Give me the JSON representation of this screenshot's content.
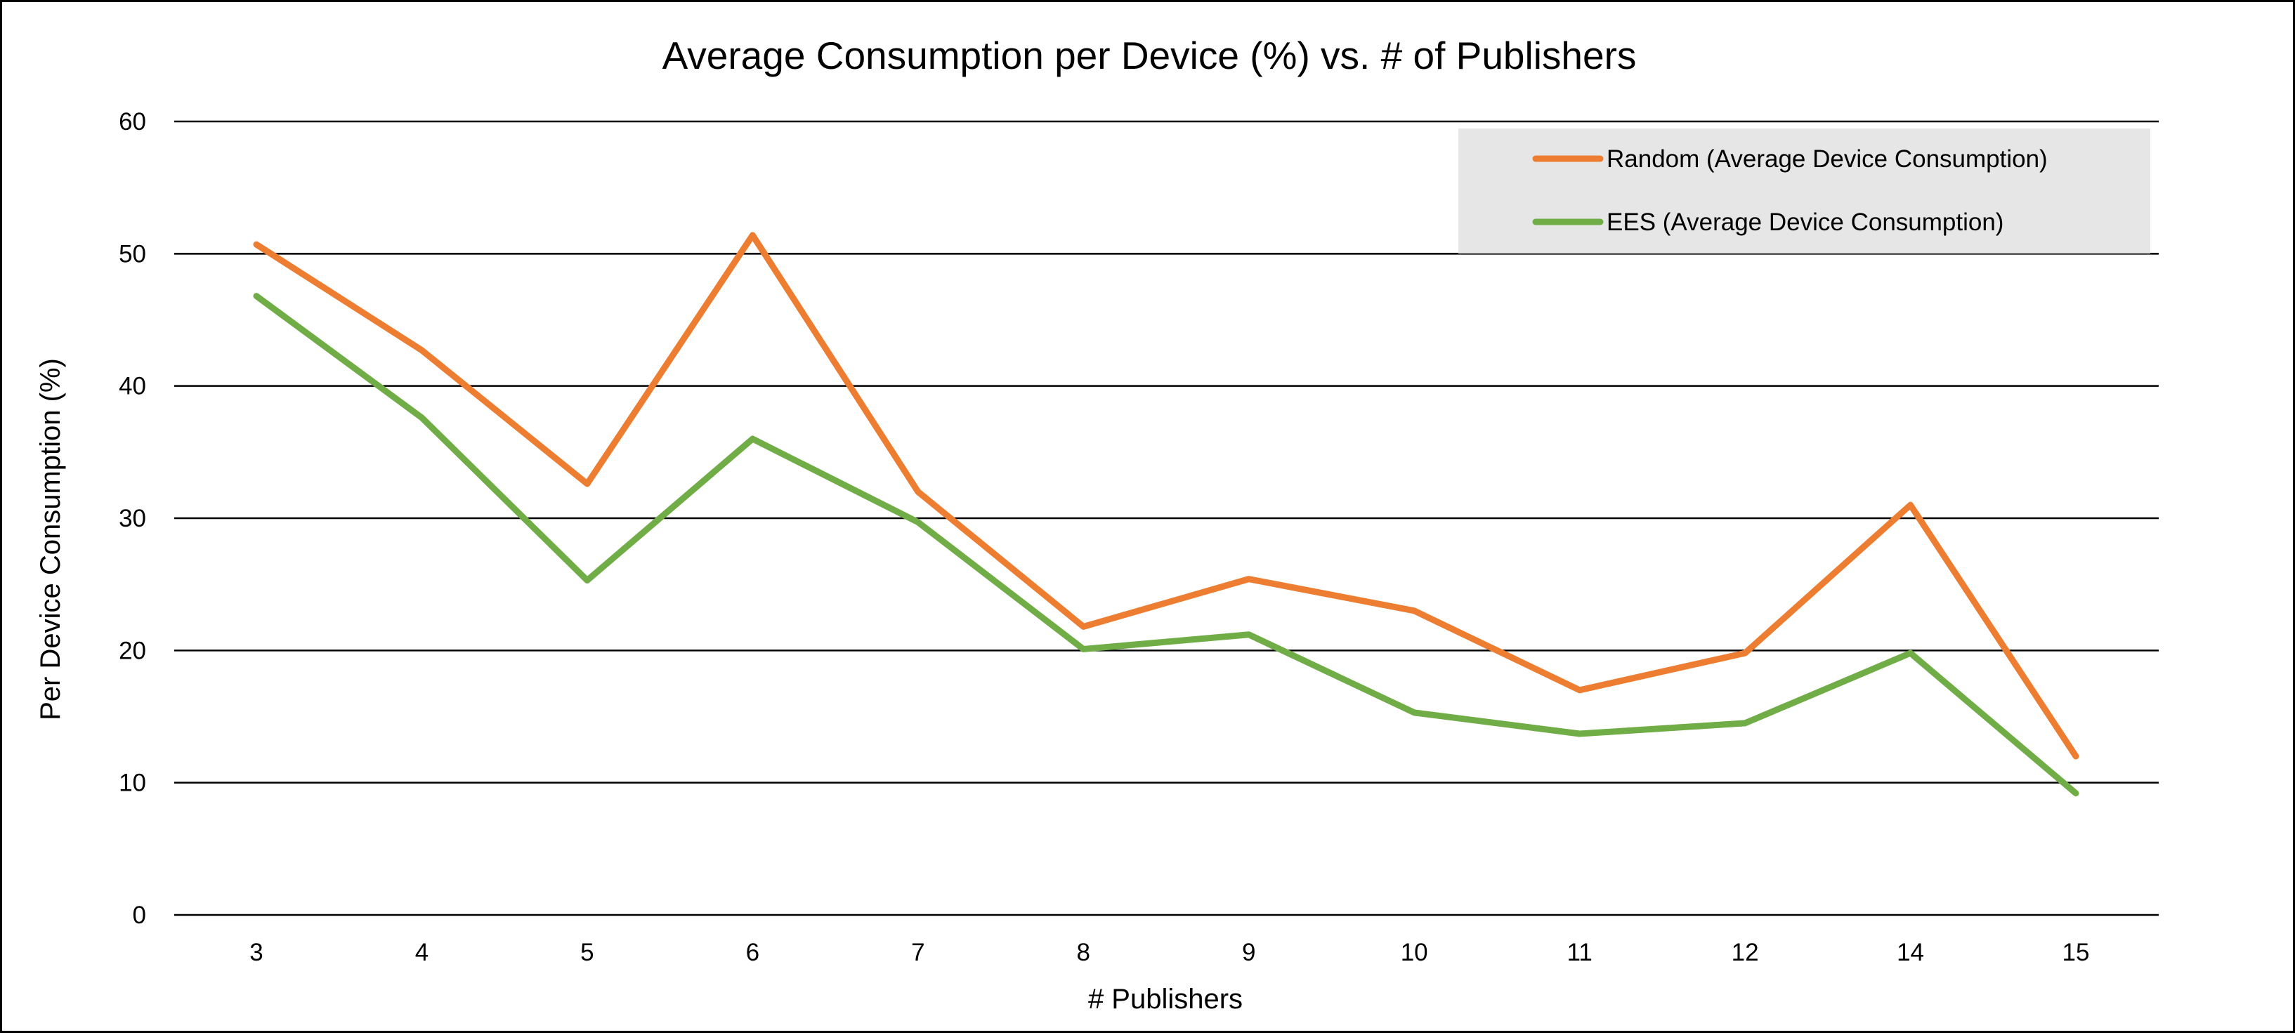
{
  "chart_data": {
    "type": "line",
    "title": "Average Consumption per Device (%) vs. # of Publishers",
    "xlabel": "# Publishers",
    "ylabel": "Per Device Consumption (%)",
    "ylim": [
      0,
      60
    ],
    "yticks": [
      0,
      10,
      20,
      30,
      40,
      50,
      60
    ],
    "grid": true,
    "legend_position": "top-right",
    "categories": [
      "3",
      "4",
      "5",
      "6",
      "7",
      "8",
      "9",
      "10",
      "11",
      "12",
      "14",
      "15"
    ],
    "series": [
      {
        "name": "Random (Average Device Consumption)",
        "color": "#ED7D31",
        "values": [
          50.7,
          42.7,
          32.6,
          51.4,
          32.0,
          21.8,
          25.4,
          23.0,
          17.0,
          19.8,
          31.0,
          12.0
        ]
      },
      {
        "name": "EES (Average Device Consumption)",
        "color": "#70AD47",
        "values": [
          46.8,
          37.6,
          25.3,
          36.0,
          29.7,
          20.1,
          21.2,
          15.3,
          13.7,
          14.5,
          19.8,
          9.2
        ]
      }
    ]
  }
}
